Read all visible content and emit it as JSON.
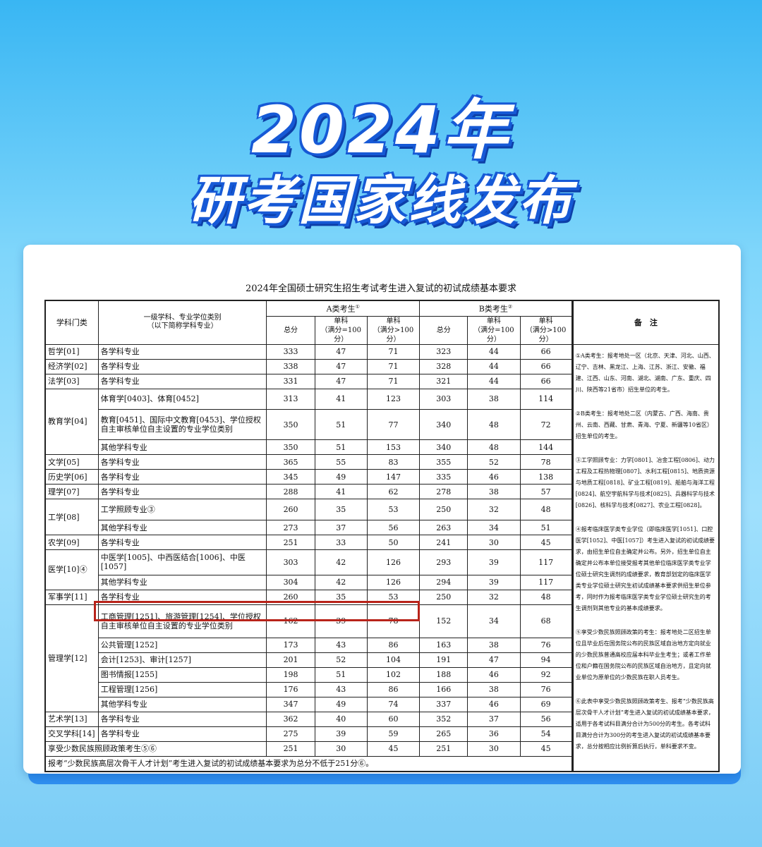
{
  "hero": {
    "line1": "2024年",
    "line2": "研考国家线发布"
  },
  "document": {
    "title": "2024年全国硕士研究生招生考试考生进入复试的初试成绩基本要求",
    "headers": {
      "category": "学科门类",
      "subject": "一级学科、专业学位类别",
      "subject_note": "（以下简称学科专业）",
      "group_a": "A类考生",
      "group_a_mark": "①",
      "group_b": "B类考生",
      "group_b_mark": "②",
      "total": "总分",
      "single": "单科",
      "full100": "（满分=100分）",
      "fullover100": "（满分>100分）",
      "notes": "备　注"
    },
    "highlight_color": "#b8231a",
    "rows": [
      {
        "category": "哲学[01]",
        "subject": "各学科专业",
        "values": [
          "333",
          "47",
          "71",
          "323",
          "44",
          "66"
        ]
      },
      {
        "category": "经济学[02]",
        "subject": "各学科专业",
        "values": [
          "338",
          "47",
          "71",
          "328",
          "44",
          "66"
        ]
      },
      {
        "category": "法学[03]",
        "subject": "各学科专业",
        "values": [
          "331",
          "47",
          "71",
          "321",
          "44",
          "66"
        ]
      },
      {
        "category": "教育学[04]",
        "span": 3,
        "subject": "体育学[0403]、体育[0452]",
        "values": [
          "313",
          "41",
          "123",
          "303",
          "38",
          "114"
        ]
      },
      {
        "subject": "教育[0451]、国际中文教育[0453]、学位授权自主审核单位自主设置的专业学位类别",
        "tall": 1,
        "values": [
          "350",
          "51",
          "77",
          "340",
          "48",
          "72"
        ]
      },
      {
        "subject": "其他学科专业",
        "values": [
          "350",
          "51",
          "153",
          "340",
          "48",
          "144"
        ]
      },
      {
        "category": "文学[05]",
        "subject": "各学科专业",
        "values": [
          "365",
          "55",
          "83",
          "355",
          "52",
          "78"
        ]
      },
      {
        "category": "历史学[06]",
        "subject": "各学科专业",
        "values": [
          "345",
          "49",
          "147",
          "335",
          "46",
          "138"
        ]
      },
      {
        "category": "理学[07]",
        "subject": "各学科专业",
        "values": [
          "288",
          "41",
          "62",
          "278",
          "38",
          "57"
        ]
      },
      {
        "category": "工学[08]",
        "span": 2,
        "subject": "工学照顾专业③",
        "values": [
          "260",
          "35",
          "53",
          "250",
          "32",
          "48"
        ]
      },
      {
        "subject": "其他学科专业",
        "values": [
          "273",
          "37",
          "56",
          "263",
          "34",
          "51"
        ]
      },
      {
        "category": "农学[09]",
        "subject": "各学科专业",
        "values": [
          "251",
          "33",
          "50",
          "241",
          "30",
          "45"
        ]
      },
      {
        "category": "医学[10]④",
        "span": 2,
        "subject": "中医学[1005]、中西医结合[1006]、中医[1057]",
        "values": [
          "303",
          "42",
          "126",
          "293",
          "39",
          "117"
        ]
      },
      {
        "subject": "其他学科专业",
        "values": [
          "304",
          "42",
          "126",
          "294",
          "39",
          "117"
        ]
      },
      {
        "category": "军事学[11]",
        "subject": "各学科专业",
        "values": [
          "260",
          "35",
          "53",
          "250",
          "32",
          "48"
        ]
      },
      {
        "category": "管理学[12]",
        "span": 6,
        "subject": "工商管理[1251]、旅游管理[1254]、学位授权自主审核单位自主设置的专业学位类别",
        "tall": 2,
        "values": [
          "162",
          "39",
          "78",
          "152",
          "34",
          "68"
        ]
      },
      {
        "subject": "公共管理[1252]",
        "highlighted": true,
        "values": [
          "173",
          "43",
          "86",
          "163",
          "38",
          "76"
        ]
      },
      {
        "subject": "会计[1253]、审计[1257]",
        "values": [
          "201",
          "52",
          "104",
          "191",
          "47",
          "94"
        ]
      },
      {
        "subject": "图书情报[1255]",
        "values": [
          "198",
          "51",
          "102",
          "188",
          "46",
          "92"
        ]
      },
      {
        "subject": "工程管理[1256]",
        "values": [
          "176",
          "43",
          "86",
          "166",
          "38",
          "76"
        ]
      },
      {
        "subject": "其他学科专业",
        "values": [
          "347",
          "49",
          "74",
          "337",
          "46",
          "69"
        ]
      },
      {
        "category": "艺术学[13]",
        "subject": "各学科专业",
        "values": [
          "362",
          "40",
          "60",
          "352",
          "37",
          "56"
        ]
      },
      {
        "category": "交叉学科[14]",
        "subject": "各学科专业",
        "values": [
          "275",
          "39",
          "59",
          "265",
          "36",
          "54"
        ]
      },
      {
        "category": "享受少数民族照顾政策考生⑤⑥",
        "merged": true,
        "values": [
          "251",
          "30",
          "45",
          "251",
          "30",
          "45"
        ]
      }
    ],
    "footer": "报考“少数民族高层次骨干人才计划”考生进入复试的初试成绩基本要求为总分不低于251分⑥。",
    "notes": [
      "①A类考生：报考地处一区（北京、天津、河北、山西、辽宁、吉林、黑龙江、上海、江苏、浙江、安徽、福建、江西、山东、河南、湖北、湖南、广东、重庆、四川、陕西等21省市）招生单位的考生。",
      "②B类考生：报考地处二区（内蒙古、广西、海南、贵州、云南、西藏、甘肃、青海、宁夏、新疆等10省区）招生单位的考生。",
      "③工学照顾专业：力学[0801]、冶金工程[0806]、动力工程及工程热物理[0807]、水利工程[0815]、地质资源与地质工程[0818]、矿业工程[0819]、船舶与海洋工程[0824]、航空宇航科学与技术[0825]、兵器科学与技术[0826]、核科学与技术[0827]、农业工程[0828]。",
      "④报考临床医学类专业学位（即临床医学[1051]、口腔医学[1052]、中医[1057]）考生进入复试的初试成绩要求，由招生单位自主确定并公布。另外，招生单位自主确定并公布本单位接受报考其他单位临床医学类专业学位硕士研究生调剂的成绩要求，教育部划定的临床医学类专业学位硕士研究生初试成绩基本要求供招生单位参考，同时作为报考临床医学类专业学位硕士研究生的考生调剂到其他专业的基本成绩要求。",
      "⑤享受少数民族照顾政策的考生：报考地处二区招生单位且毕业后在国务院公布的民族区域自治地方定向就业的少数民族普通高校应届本科毕业生考生；或者工作单位和户籍在国务院公布的民族区域自治地方，且定向就业单位为原单位的少数民族在职人员考生。",
      "⑥此表中享受少数民族照顾政策考生、报考“少数民族高层次骨干人才计划”考生进入复试的初试成绩基本要求，适用于各考试科目满分合计为500分的考生。各考试科目满分合计为300分的考生进入复试的初试成绩基本要求，总分按相应比例折算后执行，单科要求不变。"
    ]
  }
}
